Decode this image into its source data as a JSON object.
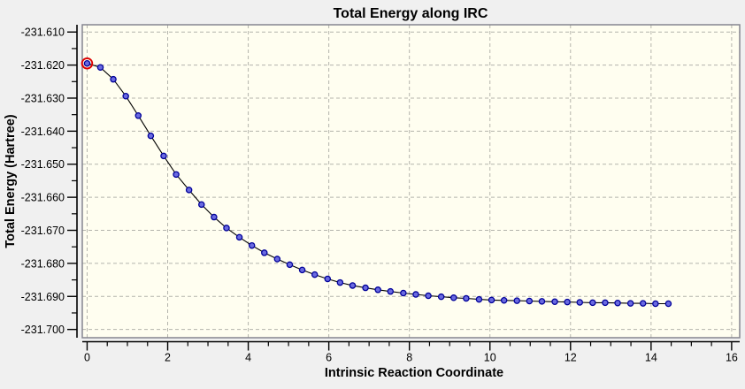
{
  "window": {
    "background": "#f0f0f0"
  },
  "chart_data": {
    "type": "line",
    "title": "Total Energy along IRC",
    "xlabel": "Intrinsic Reaction Coordinate",
    "ylabel": "Total Energy (Hartree)",
    "xlim": [
      -0.12,
      16.2
    ],
    "ylim": [
      -231.7025,
      -231.6078
    ],
    "x_major_ticks": [
      0,
      2,
      4,
      6,
      8,
      10,
      12,
      14,
      16
    ],
    "x_minor_tick_step": 0.5,
    "y_major_ticks": [
      -231.61,
      -231.62,
      -231.63,
      -231.64,
      -231.65,
      -231.66,
      -231.67,
      -231.68,
      -231.69,
      -231.7
    ],
    "y_minor_tick_step": 0.005,
    "y_tick_decimals": 3,
    "grid": {
      "show": true,
      "style": "dashed",
      "color": "#b4b4ac"
    },
    "legend": {
      "show": false
    },
    "plot_background": "#fffef0",
    "plot_border_color": "#85858f",
    "axis_color": "#000000",
    "series": [
      {
        "name": "Total Energy",
        "line_color": "#000000",
        "marker": "circle",
        "marker_fill": "#6a6ae0",
        "marker_edge": "#000099",
        "x": [
          0.0,
          0.33,
          0.65,
          0.96,
          1.27,
          1.58,
          1.9,
          2.21,
          2.53,
          2.84,
          3.15,
          3.46,
          3.78,
          4.09,
          4.4,
          4.72,
          5.03,
          5.34,
          5.65,
          5.97,
          6.28,
          6.59,
          6.91,
          7.22,
          7.53,
          7.85,
          8.16,
          8.47,
          8.79,
          9.1,
          9.41,
          9.73,
          10.04,
          10.35,
          10.67,
          10.98,
          11.29,
          11.61,
          11.92,
          12.23,
          12.55,
          12.86,
          13.17,
          13.49,
          13.8,
          14.11,
          14.43
        ],
        "y": [
          -231.6195,
          -231.6207,
          -231.6243,
          -231.6294,
          -231.6353,
          -231.6414,
          -231.6475,
          -231.6531,
          -231.6578,
          -231.6622,
          -231.666,
          -231.6693,
          -231.6721,
          -231.6746,
          -231.6768,
          -231.6787,
          -231.6804,
          -231.682,
          -231.6834,
          -231.6847,
          -231.6858,
          -231.6867,
          -231.6874,
          -231.688,
          -231.6885,
          -231.689,
          -231.6894,
          -231.6898,
          -231.6901,
          -231.6904,
          -231.6906,
          -231.6909,
          -231.6911,
          -231.6912,
          -231.6913,
          -231.6914,
          -231.6915,
          -231.6916,
          -231.6917,
          -231.6918,
          -231.6919,
          -231.6919,
          -231.692,
          -231.6921,
          -231.6921,
          -231.6922,
          -231.6922
        ]
      }
    ],
    "selected_point": {
      "series": 0,
      "index": 0,
      "ring_color": "#dd0000"
    }
  }
}
